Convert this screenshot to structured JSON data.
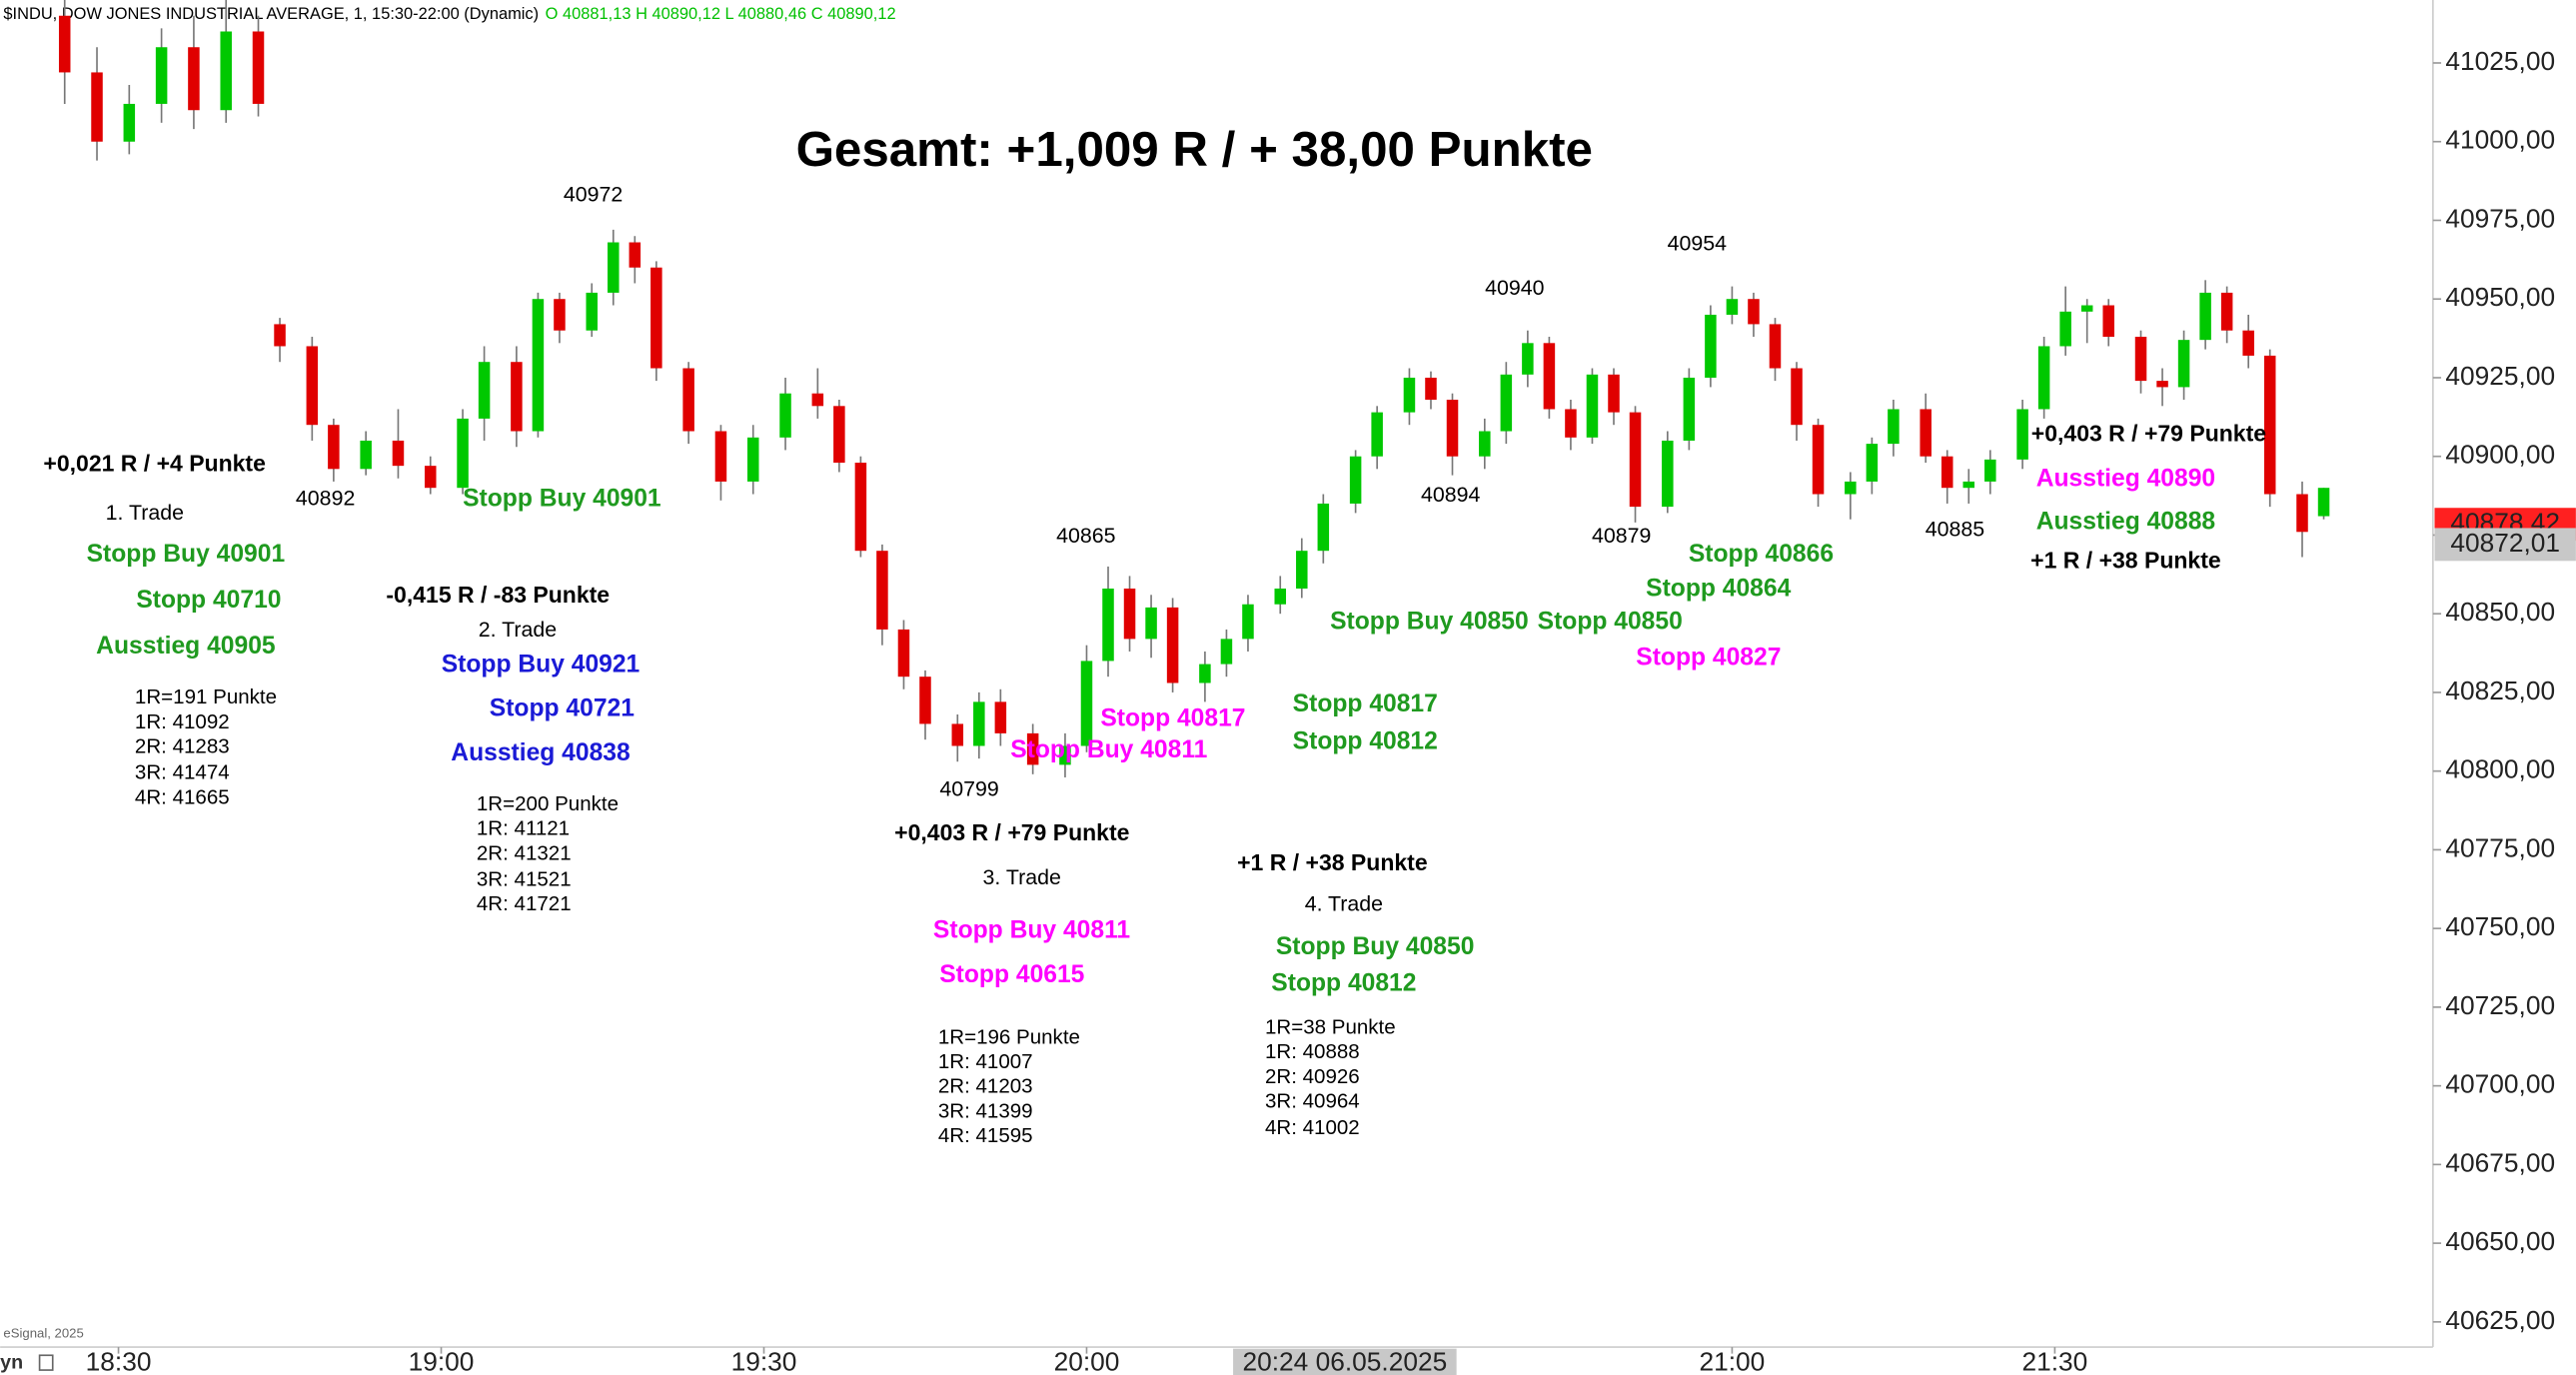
{
  "chart_data": {
    "type": "candlestick",
    "title": "Gesamt: +1,009 R / + 38,00 Punkte",
    "header": {
      "symbol": "$INDU, DOW JONES INDUSTRIAL AVERAGE, 1, 15:30-22:00 (Dynamic)",
      "ohlc": "O 40881,13 H 40890,12 L 40880,46 C 40890,12"
    },
    "up_color": "#00c800",
    "down_color": "#e00000",
    "x": [
      1105,
      1108,
      1111,
      1114,
      1117,
      1120,
      1123,
      1125,
      1128,
      1130,
      1133,
      1136,
      1139,
      1142,
      1144,
      1147,
      1149,
      1151,
      1154,
      1156,
      1158,
      1160,
      1163,
      1166,
      1169,
      1172,
      1175,
      1177,
      1179,
      1181,
      1183,
      1185,
      1188,
      1190,
      1192,
      1195,
      1198,
      1200,
      1202,
      1204,
      1206,
      1208,
      1211,
      1213,
      1215,
      1218,
      1220,
      1222,
      1225,
      1227,
      1230,
      1232,
      1234,
      1237,
      1239,
      1241,
      1243,
      1245,
      1247,
      1249,
      1251,
      1254,
      1256,
      1258,
      1260,
      1262,
      1264,
      1266,
      1268,
      1271,
      1273,
      1275,
      1278,
      1280,
      1282,
      1284,
      1287,
      1289,
      1291,
      1293,
      1295,
      1298,
      1300,
      1302,
      1304,
      1306,
      1308,
      1310,
      1313,
      1315
    ],
    "open": [
      41040,
      41022,
      41000,
      41012,
      41030,
      41010,
      41035,
      40942,
      40935,
      40910,
      40896,
      40905,
      40897,
      40890,
      40912,
      40930,
      40908,
      40950,
      40940,
      40952,
      40968,
      40960,
      40928,
      40908,
      40892,
      40906,
      40920,
      40916,
      40898,
      40870,
      40845,
      40830,
      40815,
      40808,
      40822,
      40812,
      40802,
      40808,
      40835,
      40858,
      40842,
      40852,
      40828,
      40834,
      40842,
      40853,
      40858,
      40870,
      40885,
      40900,
      40914,
      40925,
      40918,
      40900,
      40908,
      40926,
      40936,
      40915,
      40906,
      40926,
      40914,
      40884,
      40905,
      40925,
      40945,
      40950,
      40942,
      40928,
      40910,
      40888,
      40892,
      40904,
      40915,
      40900,
      40890,
      40892,
      40899,
      40915,
      40935,
      40946,
      40948,
      40938,
      40924,
      40922,
      40937,
      40952,
      40940,
      40932,
      40888,
      40881
    ],
    "high": [
      41046,
      41030,
      41018,
      41036,
      41040,
      41045,
      41040,
      40944,
      40938,
      40912,
      40908,
      40915,
      40900,
      40915,
      40935,
      40935,
      40952,
      40952,
      40955,
      40972,
      40970,
      40962,
      40930,
      40910,
      40910,
      40925,
      40928,
      40918,
      40900,
      40872,
      40848,
      40832,
      40818,
      40825,
      40826,
      40815,
      40812,
      40840,
      40865,
      40862,
      40856,
      40855,
      40838,
      40845,
      40856,
      40862,
      40874,
      40888,
      40902,
      40916,
      40928,
      40927,
      40920,
      40912,
      40930,
      40940,
      40938,
      40918,
      40928,
      40928,
      40916,
      40908,
      40928,
      40948,
      40954,
      40952,
      40944,
      40930,
      40912,
      40895,
      40906,
      40918,
      40920,
      40902,
      40896,
      40902,
      40918,
      40938,
      40954,
      40950,
      40950,
      40940,
      40928,
      40940,
      40956,
      40954,
      40945,
      40934,
      40892,
      40890
    ],
    "low": [
      41012,
      40994,
      40996,
      41006,
      41004,
      41006,
      41008,
      40930,
      40905,
      40892,
      40894,
      40893,
      40888,
      40888,
      40905,
      40903,
      40906,
      40936,
      40938,
      40948,
      40955,
      40924,
      40904,
      40886,
      40888,
      40902,
      40912,
      40895,
      40868,
      40840,
      40826,
      40810,
      40803,
      40804,
      40808,
      40799,
      40798,
      40806,
      40830,
      40838,
      40836,
      40825,
      40822,
      40830,
      40838,
      40850,
      40855,
      40866,
      40882,
      40896,
      40910,
      40915,
      40894,
      40896,
      40904,
      40922,
      40912,
      40902,
      40904,
      40910,
      40879,
      40882,
      40902,
      40922,
      40942,
      40938,
      40924,
      40905,
      40884,
      40880,
      40888,
      40900,
      40898,
      40885,
      40885,
      40888,
      40896,
      40912,
      40932,
      40936,
      40935,
      40920,
      40916,
      40918,
      40934,
      40936,
      40928,
      40884,
      40868,
      40880
    ],
    "close": [
      41022,
      41000,
      41012,
      41030,
      41010,
      41035,
      41012,
      40935,
      40910,
      40896,
      40905,
      40897,
      40890,
      40912,
      40930,
      40908,
      40950,
      40940,
      40952,
      40968,
      40960,
      40928,
      40908,
      40892,
      40906,
      40920,
      40916,
      40898,
      40870,
      40845,
      40830,
      40815,
      40808,
      40822,
      40812,
      40802,
      40808,
      40835,
      40858,
      40842,
      40852,
      40828,
      40834,
      40842,
      40853,
      40858,
      40870,
      40885,
      40900,
      40914,
      40925,
      40918,
      40900,
      40908,
      40926,
      40936,
      40915,
      40906,
      40926,
      40914,
      40884,
      40905,
      40925,
      40945,
      40950,
      40942,
      40928,
      40910,
      40888,
      40892,
      40904,
      40915,
      40900,
      40890,
      40892,
      40899,
      40915,
      40935,
      40946,
      40948,
      40938,
      40924,
      40922,
      40937,
      40952,
      40940,
      40932,
      40888,
      40876,
      40890
    ],
    "xlim": [
      1099,
      1325
    ],
    "ylim": [
      40617,
      41045
    ],
    "xticks": [
      {
        "value": 1110,
        "label": "18:30"
      },
      {
        "value": 1140,
        "label": "19:00"
      },
      {
        "value": 1170,
        "label": "19:30"
      },
      {
        "value": 1200,
        "label": "20:00"
      },
      {
        "value": 1260,
        "label": "21:00"
      },
      {
        "value": 1290,
        "label": "21:30"
      }
    ],
    "yticks": [
      {
        "value": 40625,
        "label": "40625,00"
      },
      {
        "value": 40650,
        "label": "40650,00"
      },
      {
        "value": 40675,
        "label": "40675,00"
      },
      {
        "value": 40700,
        "label": "40700,00"
      },
      {
        "value": 40725,
        "label": "40725,00"
      },
      {
        "value": 40750,
        "label": "40750,00"
      },
      {
        "value": 40775,
        "label": "40775,00"
      },
      {
        "value": 40800,
        "label": "40800,00"
      },
      {
        "value": 40825,
        "label": "40825,00"
      },
      {
        "value": 40850,
        "label": "40850,00"
      },
      {
        "value": 40875,
        "label": "40875,00"
      },
      {
        "value": 40900,
        "label": "40900,00"
      },
      {
        "value": 40925,
        "label": "40925,00"
      },
      {
        "value": 40950,
        "label": "40950,00"
      },
      {
        "value": 40975,
        "label": "40975,00"
      },
      {
        "value": 41000,
        "label": "41000,00"
      },
      {
        "value": 41025,
        "label": "41025,00"
      }
    ],
    "price_labels": [
      {
        "value": 40878.42,
        "label": "40878,42"
      },
      {
        "value": 40872.01,
        "label": "40872,01"
      }
    ],
    "cursor_label": {
      "value": 1224,
      "label": "20:24 06.05.2025"
    },
    "footer": [
      "eSignal, 2025",
      "yn"
    ],
    "annotations": [
      "40972",
      "40892",
      "40940",
      "40954",
      "40865",
      "40894",
      "40879",
      "40885",
      "40799",
      "+0,021 R / +4 Punkte",
      "1. Trade",
      "Stopp Buy 40901",
      "Stopp 40710",
      "Ausstieg 40905",
      "1R=191 Punkte",
      "1R: 41092",
      "2R: 41283",
      "3R: 41474",
      "4R: 41665",
      "Stopp Buy 40901",
      "-0,415 R / -83 Punkte",
      "2. Trade",
      "Stopp Buy 40921",
      "Stopp 40721",
      "Ausstieg 40838",
      "1R=200 Punkte",
      "1R: 41121",
      "2R: 41321",
      "3R: 41521",
      "4R: 41721",
      "+0,403 R / +79 Punkte",
      "3. Trade",
      "Stopp Buy 40811",
      "Stopp 40615",
      "1R=196 Punkte",
      "1R: 41007",
      "2R: 41203",
      "3R: 41399",
      "4R: 41595",
      "Stopp 40817",
      "Stopp Buy 40811",
      "+1 R / +38 Punkte",
      "4. Trade",
      "Stopp Buy 40850",
      "Stopp 40812",
      "1R=38 Punkte",
      "1R: 40888",
      "2R: 40926",
      "3R: 40964",
      "4R: 41002",
      "Stopp 40817",
      "Stopp 40812",
      "Stopp Buy 40850",
      "Stopp 40850",
      "Stopp 40866",
      "Stopp 40864",
      "Stopp 40827",
      "+0,403 R / +79 Punkte",
      "Ausstieg 40890",
      "Ausstieg 40888",
      "+1 R / +38 Punkte"
    ]
  }
}
